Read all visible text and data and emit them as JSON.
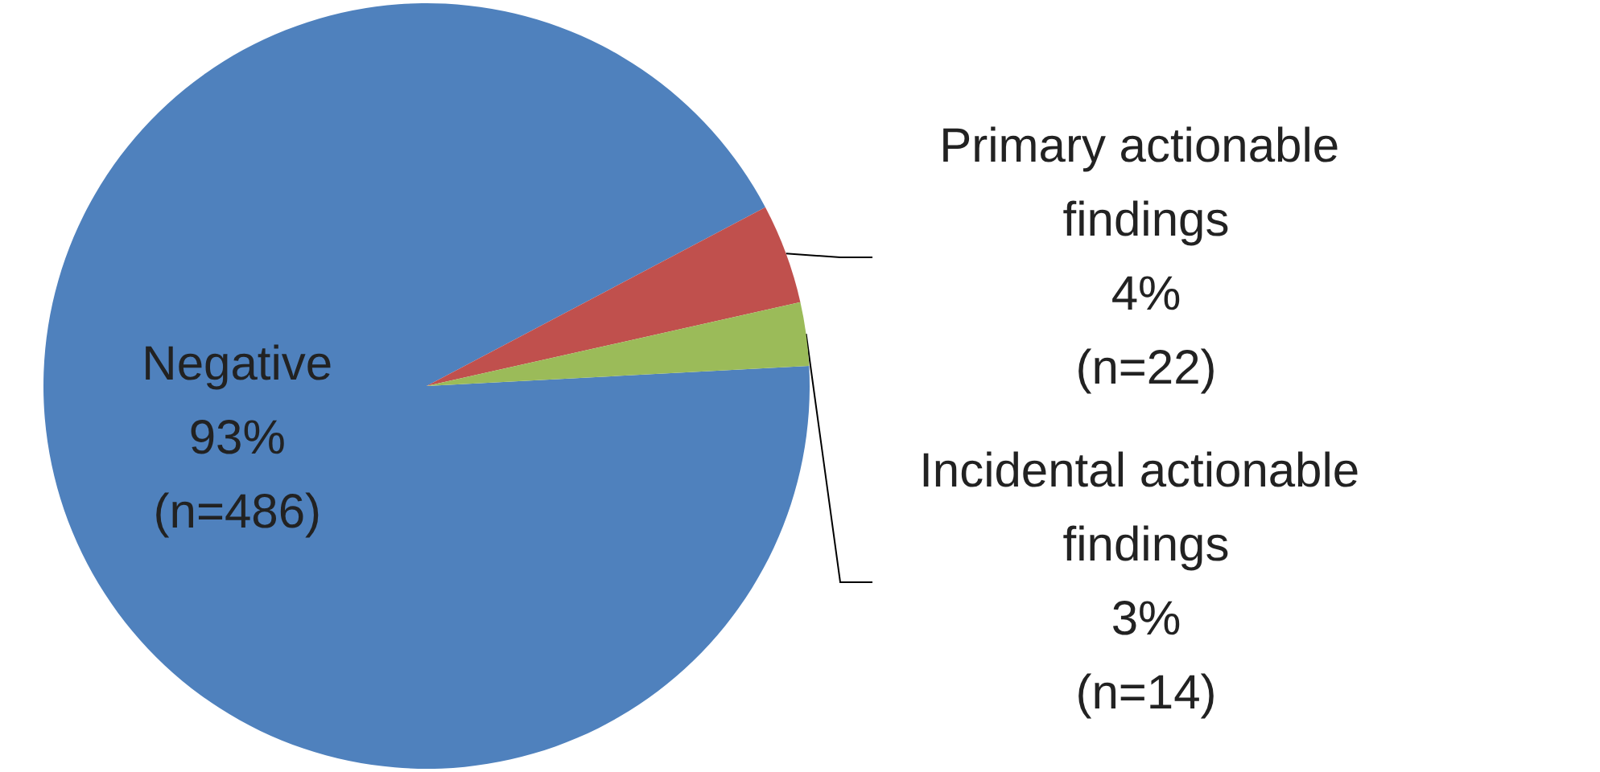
{
  "chart_data": {
    "type": "pie",
    "categories": [
      "Negative",
      "Primary actionable findings",
      "Incidental actionable findings"
    ],
    "values": [
      486,
      22,
      14
    ],
    "value_labels": [
      "93%\n(n=486)",
      "4%\n(n=22)",
      "3%\n(n=14)"
    ],
    "colors": [
      "#4f81bd",
      "#c0504d",
      "#9bbb59"
    ],
    "legend": false
  }
}
